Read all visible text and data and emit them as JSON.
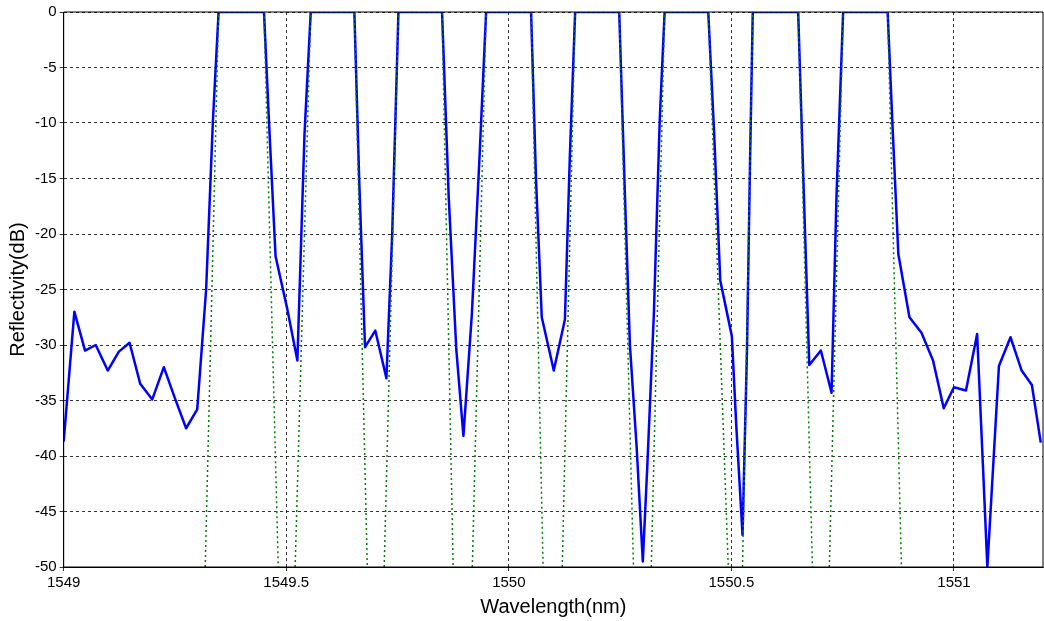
{
  "chart_data": {
    "type": "line",
    "xlabel": "Wavelength(nm)",
    "ylabel": "Reflectivity(dB)",
    "xlim": [
      1549,
      1551.2
    ],
    "xticks": [
      1549,
      1549.5,
      1550,
      1550.5,
      1551
    ],
    "ylim": [
      -50,
      0
    ],
    "yticks": [
      -50,
      -45,
      -40,
      -35,
      -30,
      -25,
      -20,
      -15,
      -10,
      -5,
      0
    ],
    "grid": true,
    "marker": "none",
    "series": [
      {
        "color": "#008000",
        "line_style": "dotted",
        "x": [
          1549.318,
          1549.348,
          1549.45,
          1549.482,
          1549.501,
          1549.52,
          1549.555,
          1549.653,
          1549.682,
          1549.701,
          1549.72,
          1549.752,
          1549.85,
          1549.875,
          1549.897,
          1549.918,
          1549.949,
          1550.05,
          1550.077,
          1550.099,
          1550.12,
          1550.149,
          1550.248,
          1550.28,
          1550.3,
          1550.32,
          1550.35,
          1550.448,
          1550.493,
          1550.509,
          1550.525,
          1550.548,
          1550.65,
          1550.682,
          1550.701,
          1550.72,
          1550.751,
          1550.851,
          1550.882
        ],
        "values": [
          -50,
          0,
          0,
          -50,
          null,
          -50,
          0,
          0,
          -50,
          null,
          -50,
          0,
          0,
          -50,
          null,
          -50,
          0,
          0,
          -50,
          null,
          -50,
          0,
          0,
          -50,
          null,
          -50,
          0,
          0,
          -50,
          null,
          -50,
          0,
          0,
          -50,
          null,
          -50,
          0,
          0,
          -50
        ]
      },
      {
        "color": "#0000ff",
        "line_style": "solid",
        "x": [
          1549,
          1549.024,
          1549.048,
          1549.072,
          1549.099,
          1549.124,
          1549.148,
          1549.172,
          1549.199,
          1549.225,
          1549.249,
          1549.275,
          1549.3,
          1549.32,
          1549.335,
          1549.348,
          1549.45,
          1549.461,
          1549.476,
          1549.502,
          1549.525,
          1549.541,
          1549.555,
          1549.653,
          1549.664,
          1549.677,
          1549.7,
          1549.725,
          1549.738,
          1549.752,
          1549.85,
          1549.865,
          1549.882,
          1549.898,
          1549.917,
          1549.934,
          1549.949,
          1550.05,
          1550.061,
          1550.074,
          1550.101,
          1550.126,
          1550.137,
          1550.149,
          1550.248,
          1550.261,
          1550.272,
          1550.287,
          1550.301,
          1550.311,
          1550.326,
          1550.339,
          1550.35,
          1550.448,
          1550.461,
          1550.475,
          1550.501,
          1550.511,
          1550.525,
          1550.535,
          1550.542,
          1550.548,
          1550.65,
          1550.662,
          1550.675,
          1550.701,
          1550.725,
          1550.736,
          1550.751,
          1550.851,
          1550.862,
          1550.875,
          1550.9,
          1550.927,
          1550.953,
          1550.977,
          1551,
          1551.027,
          1551.052,
          1551.065,
          1551.075,
          1551.101,
          1551.127,
          1551.152,
          1551.175,
          1551.195
        ],
        "values": [
          -38.7,
          -27,
          -30.5,
          -30,
          -32.3,
          -30.6,
          -29.8,
          -33.5,
          -34.9,
          -32,
          -34.7,
          -37.5,
          -35.8,
          -25,
          -10,
          0,
          0,
          -9.7,
          -22,
          -26.7,
          -31.4,
          -11,
          0,
          0,
          -15.3,
          -30.2,
          -28.7,
          -33,
          -20,
          0,
          0,
          -16.7,
          -30.4,
          -38.2,
          -27.2,
          -13.2,
          0,
          0,
          -15,
          -27.5,
          -32.3,
          -27.7,
          -13.1,
          0,
          0,
          -16.7,
          -30,
          -39.1,
          -49.5,
          -41,
          -27,
          -9.7,
          0,
          0,
          -10.7,
          -24.2,
          -29.2,
          -37.3,
          -47.1,
          -30.5,
          -13.2,
          0,
          0,
          -15.5,
          -31.8,
          -30.5,
          -34.3,
          -16.7,
          0,
          0,
          -10.3,
          -21.8,
          -27.5,
          -28.9,
          -31.4,
          -35.7,
          -33.8,
          -34.1,
          -29,
          -40.8,
          -50,
          -31.9,
          -29.3,
          -32.3,
          -33.6,
          -38.8
        ]
      }
    ]
  }
}
